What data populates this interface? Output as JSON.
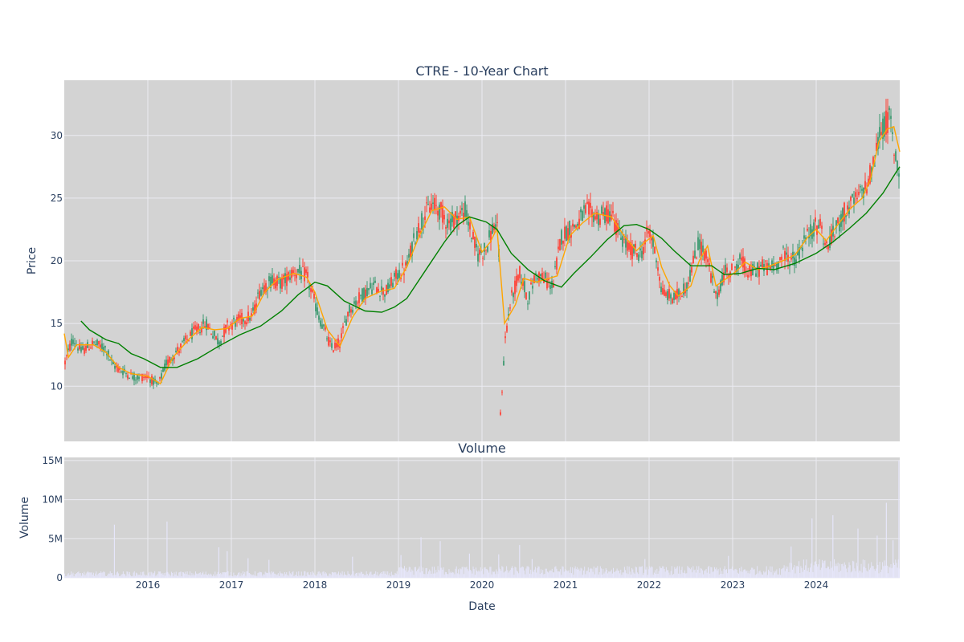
{
  "colors": {
    "plot_bg": "#d3d3d3",
    "grid": "#ebebf2",
    "up": "#3d9970",
    "down": "#ff4136",
    "ma_short": "#ffa500",
    "ma_long": "#008000",
    "volume": "#e6e6fa",
    "text": "#2a3f5f"
  },
  "chart_data": [
    {
      "type": "candlestick",
      "title": "CTRE - 10-Year Chart",
      "ylabel": "Price",
      "xlabel": "",
      "xlim": [
        2015.0,
        2025.0
      ],
      "ylim": [
        5.6,
        34.4
      ],
      "grid": true,
      "x_ticks": [
        "2016",
        "2017",
        "2018",
        "2019",
        "2020",
        "2021",
        "2022",
        "2023",
        "2024"
      ],
      "y_ticks": [
        10,
        15,
        20,
        25,
        30
      ],
      "price_path": [
        [
          2015.0,
          11.7
        ],
        [
          2015.1,
          13.8
        ],
        [
          2015.2,
          12.8
        ],
        [
          2015.35,
          13.4
        ],
        [
          2015.5,
          13.0
        ],
        [
          2015.58,
          11.7
        ],
        [
          2015.7,
          11.2
        ],
        [
          2015.85,
          10.7
        ],
        [
          2016.0,
          10.8
        ],
        [
          2016.12,
          10.0
        ],
        [
          2016.22,
          11.8
        ],
        [
          2016.4,
          13.2
        ],
        [
          2016.55,
          14.3
        ],
        [
          2016.7,
          15.0
        ],
        [
          2016.85,
          13.5
        ],
        [
          2016.95,
          14.8
        ],
        [
          2017.1,
          15.3
        ],
        [
          2017.25,
          15.6
        ],
        [
          2017.35,
          17.8
        ],
        [
          2017.5,
          18.5
        ],
        [
          2017.6,
          18.2
        ],
        [
          2017.75,
          19.2
        ],
        [
          2017.9,
          18.8
        ],
        [
          2018.05,
          15.5
        ],
        [
          2018.2,
          13.0
        ],
        [
          2018.3,
          13.5
        ],
        [
          2018.4,
          16.0
        ],
        [
          2018.55,
          17.2
        ],
        [
          2018.7,
          18.0
        ],
        [
          2018.85,
          17.5
        ],
        [
          2019.0,
          19.0
        ],
        [
          2019.1,
          19.5
        ],
        [
          2019.2,
          22.0
        ],
        [
          2019.3,
          23.5
        ],
        [
          2019.4,
          24.5
        ],
        [
          2019.5,
          24.0
        ],
        [
          2019.6,
          23.0
        ],
        [
          2019.7,
          23.5
        ],
        [
          2019.8,
          24.0
        ],
        [
          2019.88,
          22.0
        ],
        [
          2019.95,
          20.5
        ],
        [
          2020.05,
          21.0
        ],
        [
          2020.15,
          23.0
        ],
        [
          2020.2,
          22.0
        ],
        [
          2020.22,
          7.6
        ],
        [
          2020.28,
          14.0
        ],
        [
          2020.35,
          17.0
        ],
        [
          2020.45,
          19.0
        ],
        [
          2020.55,
          17.0
        ],
        [
          2020.65,
          19.0
        ],
        [
          2020.75,
          18.5
        ],
        [
          2020.85,
          18.0
        ],
        [
          2020.95,
          22.0
        ],
        [
          2021.05,
          22.5
        ],
        [
          2021.15,
          23.0
        ],
        [
          2021.25,
          24.0
        ],
        [
          2021.4,
          23.5
        ],
        [
          2021.55,
          23.8
        ],
        [
          2021.65,
          22.0
        ],
        [
          2021.75,
          21.0
        ],
        [
          2021.9,
          20.5
        ],
        [
          2022.0,
          22.5
        ],
        [
          2022.1,
          20.0
        ],
        [
          2022.15,
          17.5
        ],
        [
          2022.3,
          17.0
        ],
        [
          2022.45,
          18.0
        ],
        [
          2022.6,
          21.5
        ],
        [
          2022.7,
          20.0
        ],
        [
          2022.8,
          17.0
        ],
        [
          2022.9,
          19.0
        ],
        [
          2023.0,
          19.5
        ],
        [
          2023.1,
          20.0
        ],
        [
          2023.2,
          19.0
        ],
        [
          2023.35,
          19.5
        ],
        [
          2023.5,
          19.5
        ],
        [
          2023.6,
          20.5
        ],
        [
          2023.75,
          20.0
        ],
        [
          2023.85,
          21.5
        ],
        [
          2023.95,
          22.5
        ],
        [
          2024.05,
          23.0
        ],
        [
          2024.12,
          21.0
        ],
        [
          2024.2,
          22.0
        ],
        [
          2024.35,
          24.0
        ],
        [
          2024.5,
          25.0
        ],
        [
          2024.6,
          26.0
        ],
        [
          2024.7,
          28.0
        ],
        [
          2024.75,
          30.0
        ],
        [
          2024.82,
          30.8
        ],
        [
          2024.88,
          31.5
        ],
        [
          2024.93,
          29.0
        ],
        [
          2024.97,
          27.5
        ],
        [
          2025.0,
          27.0
        ]
      ],
      "series": [
        {
          "type": "line",
          "color": "#ffa500",
          "points": [
            [
              2015.0,
              14.2
            ],
            [
              2015.05,
              12.3
            ],
            [
              2015.15,
              13.3
            ],
            [
              2015.35,
              13.3
            ],
            [
              2015.5,
              12.7
            ],
            [
              2015.65,
              11.5
            ],
            [
              2015.8,
              11.0
            ],
            [
              2016.0,
              10.8
            ],
            [
              2016.15,
              10.2
            ],
            [
              2016.3,
              12.3
            ],
            [
              2016.5,
              13.8
            ],
            [
              2016.65,
              14.7
            ],
            [
              2016.8,
              14.5
            ],
            [
              2016.95,
              14.6
            ],
            [
              2017.1,
              15.4
            ],
            [
              2017.25,
              15.6
            ],
            [
              2017.4,
              17.5
            ],
            [
              2017.55,
              18.5
            ],
            [
              2017.75,
              19.0
            ],
            [
              2017.9,
              18.7
            ],
            [
              2018.0,
              17.5
            ],
            [
              2018.15,
              14.5
            ],
            [
              2018.3,
              13.2
            ],
            [
              2018.45,
              15.5
            ],
            [
              2018.6,
              17.0
            ],
            [
              2018.8,
              17.6
            ],
            [
              2018.95,
              17.8
            ],
            [
              2019.1,
              19.5
            ],
            [
              2019.25,
              22.0
            ],
            [
              2019.4,
              24.0
            ],
            [
              2019.55,
              24.3
            ],
            [
              2019.7,
              23.3
            ],
            [
              2019.85,
              23.5
            ],
            [
              2020.0,
              20.7
            ],
            [
              2020.1,
              21.5
            ],
            [
              2020.18,
              22.6
            ],
            [
              2020.27,
              15.0
            ],
            [
              2020.4,
              16.5
            ],
            [
              2020.5,
              18.6
            ],
            [
              2020.65,
              18.3
            ],
            [
              2020.8,
              18.6
            ],
            [
              2020.9,
              18.8
            ],
            [
              2021.05,
              22.0
            ],
            [
              2021.2,
              23.0
            ],
            [
              2021.35,
              23.8
            ],
            [
              2021.55,
              23.5
            ],
            [
              2021.7,
              22.0
            ],
            [
              2021.85,
              20.8
            ],
            [
              2021.95,
              21.5
            ],
            [
              2022.05,
              22.0
            ],
            [
              2022.15,
              19.5
            ],
            [
              2022.25,
              18.0
            ],
            [
              2022.35,
              17.2
            ],
            [
              2022.5,
              18.0
            ],
            [
              2022.6,
              20.0
            ],
            [
              2022.7,
              21.2
            ],
            [
              2022.8,
              18.0
            ],
            [
              2022.95,
              18.7
            ],
            [
              2023.05,
              19.2
            ],
            [
              2023.15,
              19.9
            ],
            [
              2023.3,
              19.3
            ],
            [
              2023.45,
              19.6
            ],
            [
              2023.6,
              20.0
            ],
            [
              2023.75,
              20.5
            ],
            [
              2023.9,
              21.9
            ],
            [
              2024.0,
              22.5
            ],
            [
              2024.12,
              21.6
            ],
            [
              2024.25,
              22.8
            ],
            [
              2024.4,
              24.1
            ],
            [
              2024.55,
              25.0
            ],
            [
              2024.65,
              26.5
            ],
            [
              2024.75,
              29.5
            ],
            [
              2024.85,
              30.5
            ],
            [
              2024.93,
              30.7
            ],
            [
              2025.0,
              28.7
            ]
          ]
        },
        {
          "type": "line",
          "color": "#008000",
          "points": [
            [
              2015.2,
              15.2
            ],
            [
              2015.3,
              14.5
            ],
            [
              2015.5,
              13.7
            ],
            [
              2015.65,
              13.4
            ],
            [
              2015.8,
              12.6
            ],
            [
              2015.95,
              12.2
            ],
            [
              2016.15,
              11.5
            ],
            [
              2016.35,
              11.5
            ],
            [
              2016.6,
              12.2
            ],
            [
              2016.85,
              13.2
            ],
            [
              2017.1,
              14.1
            ],
            [
              2017.35,
              14.8
            ],
            [
              2017.6,
              16.0
            ],
            [
              2017.8,
              17.3
            ],
            [
              2018.0,
              18.3
            ],
            [
              2018.15,
              18.0
            ],
            [
              2018.35,
              16.8
            ],
            [
              2018.6,
              16.0
            ],
            [
              2018.8,
              15.9
            ],
            [
              2018.95,
              16.3
            ],
            [
              2019.1,
              17.0
            ],
            [
              2019.35,
              19.5
            ],
            [
              2019.55,
              21.5
            ],
            [
              2019.7,
              22.8
            ],
            [
              2019.85,
              23.5
            ],
            [
              2020.05,
              23.1
            ],
            [
              2020.18,
              22.5
            ],
            [
              2020.35,
              20.6
            ],
            [
              2020.55,
              19.3
            ],
            [
              2020.75,
              18.4
            ],
            [
              2020.95,
              17.9
            ],
            [
              2021.1,
              19.0
            ],
            [
              2021.3,
              20.3
            ],
            [
              2021.5,
              21.7
            ],
            [
              2021.7,
              22.8
            ],
            [
              2021.85,
              22.9
            ],
            [
              2022.0,
              22.5
            ],
            [
              2022.15,
              21.8
            ],
            [
              2022.3,
              20.8
            ],
            [
              2022.5,
              19.6
            ],
            [
              2022.75,
              19.6
            ],
            [
              2022.9,
              18.9
            ],
            [
              2023.1,
              19.0
            ],
            [
              2023.3,
              19.4
            ],
            [
              2023.5,
              19.3
            ],
            [
              2023.75,
              19.8
            ],
            [
              2024.0,
              20.6
            ],
            [
              2024.2,
              21.5
            ],
            [
              2024.4,
              22.6
            ],
            [
              2024.6,
              23.8
            ],
            [
              2024.8,
              25.4
            ],
            [
              2024.95,
              27.0
            ],
            [
              2025.0,
              27.5
            ]
          ]
        }
      ]
    },
    {
      "type": "bar",
      "title": "Volume",
      "xlabel": "Date",
      "ylabel": "Volume",
      "ylim": [
        0,
        15400000
      ],
      "y_ticks": [
        "0",
        "5M",
        "10M",
        "15M"
      ],
      "y_tick_values": [
        0,
        5000000,
        10000000,
        15000000
      ],
      "x_ticks": [
        "2016",
        "2017",
        "2018",
        "2019",
        "2020",
        "2021",
        "2022",
        "2023",
        "2024"
      ],
      "spikes": [
        [
          2015.6,
          6800000
        ],
        [
          2016.23,
          7200000
        ],
        [
          2016.85,
          3900000
        ],
        [
          2016.95,
          3400000
        ],
        [
          2017.2,
          2500000
        ],
        [
          2017.45,
          2300000
        ],
        [
          2018.45,
          2700000
        ],
        [
          2019.03,
          2900000
        ],
        [
          2019.27,
          5200000
        ],
        [
          2019.5,
          4700000
        ],
        [
          2019.85,
          3100000
        ],
        [
          2020.2,
          3000000
        ],
        [
          2020.45,
          4200000
        ],
        [
          2020.6,
          2400000
        ],
        [
          2021.95,
          2400000
        ],
        [
          2022.95,
          2800000
        ],
        [
          2023.7,
          4000000
        ],
        [
          2023.95,
          7600000
        ],
        [
          2024.2,
          8000000
        ],
        [
          2024.5,
          6300000
        ],
        [
          2024.73,
          5400000
        ],
        [
          2024.84,
          9600000
        ],
        [
          2024.92,
          4800000
        ],
        [
          2024.99,
          15000000
        ]
      ]
    }
  ]
}
